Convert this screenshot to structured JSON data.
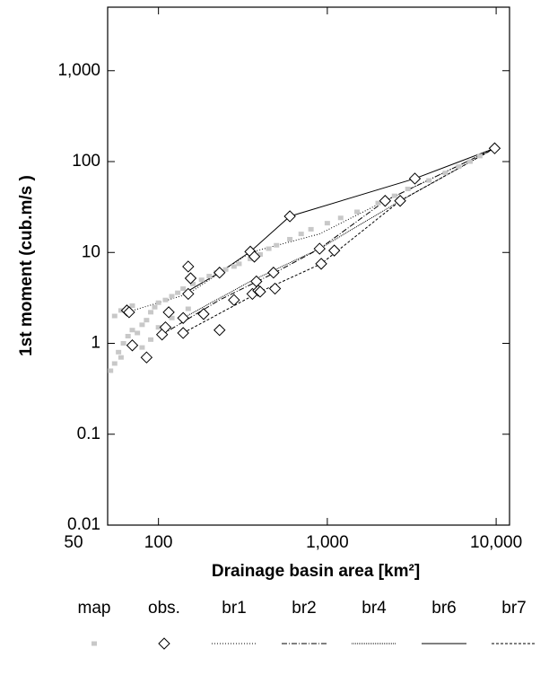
{
  "chart_data": {
    "type": "scatter",
    "x_label": "Drainage basin area [km²]",
    "y_label": "1st moment (cub.m/s )",
    "xscale": "log",
    "yscale": "log",
    "xlim": [
      50,
      12000
    ],
    "ylim": [
      0.01,
      5000
    ],
    "xticks": [
      50,
      100,
      {
        "value": 1000,
        "label": "1,000"
      },
      {
        "value": 10000,
        "label": "10,000"
      }
    ],
    "yticks": [
      0.01,
      0.1,
      1,
      10,
      100,
      {
        "value": 1000,
        "label": "1,000"
      }
    ],
    "series": [
      {
        "name": "map",
        "color": "#c8c8c8",
        "marker": "square",
        "dash": null,
        "x": [
          52,
          55,
          58,
          60,
          62,
          66,
          70,
          75,
          80,
          85,
          90,
          95,
          100,
          110,
          120,
          130,
          140,
          160,
          180,
          200,
          220,
          250,
          280,
          300,
          350,
          400,
          450,
          500,
          600,
          700,
          800,
          1000,
          1200,
          1500,
          2000,
          2500,
          3000,
          4000,
          5000,
          6000,
          7000,
          8000,
          55,
          60,
          70,
          80,
          90,
          100,
          120,
          150
        ],
        "y": [
          0.5,
          0.6,
          0.8,
          0.7,
          1.0,
          1.2,
          1.4,
          1.3,
          1.6,
          1.8,
          2.2,
          2.5,
          2.8,
          3.0,
          3.3,
          3.6,
          4.0,
          4.5,
          5.0,
          5.5,
          6.0,
          6.5,
          7.0,
          7.5,
          8.5,
          9.5,
          11,
          12,
          14,
          16,
          18,
          21,
          24,
          28,
          35,
          42,
          50,
          62,
          75,
          88,
          100,
          115,
          2.0,
          2.3,
          2.6,
          0.9,
          1.1,
          1.5,
          1.9,
          2.4
        ]
      },
      {
        "name": "obs.",
        "color": "#000000",
        "marker": "diamond",
        "dash": null,
        "x": [
          65,
          67,
          70,
          85,
          105,
          110,
          115,
          140,
          140,
          150,
          150,
          155,
          185,
          230,
          230,
          280,
          350,
          360,
          370,
          380,
          390,
          400,
          480,
          490,
          600,
          900,
          920,
          1100,
          2200,
          2700,
          3300,
          9800
        ],
        "y": [
          2.3,
          2.2,
          0.95,
          0.7,
          1.25,
          1.5,
          2.2,
          1.9,
          1.3,
          7,
          3.5,
          5.2,
          2.1,
          6,
          1.4,
          3,
          10.2,
          3.5,
          9,
          4.8,
          3.8,
          3.7,
          6,
          4,
          25,
          11,
          7.5,
          10.5,
          37,
          37,
          65,
          140
        ]
      },
      {
        "name": "br1",
        "color": "#000000",
        "marker": null,
        "dash": "1,2",
        "x": [
          65,
          150,
          350,
          900,
          2200,
          9800
        ],
        "y": [
          2.2,
          3.5,
          10,
          16,
          37,
          140
        ]
      },
      {
        "name": "br2",
        "color": "#000000",
        "marker": null,
        "dash": "6,2,1,2",
        "x": [
          105,
          230,
          490,
          900,
          2200,
          9800
        ],
        "y": [
          1.25,
          3,
          6,
          11,
          37,
          140
        ]
      },
      {
        "name": "br4",
        "color": "#000000",
        "marker": null,
        "dash": "1,1",
        "x": [
          140,
          350,
          900,
          2700,
          9800
        ],
        "y": [
          1.9,
          4.8,
          11,
          37,
          140
        ]
      },
      {
        "name": "br6",
        "color": "#000000",
        "marker": null,
        "dash": "none",
        "x": [
          140,
          230,
          350,
          600,
          3300,
          9800
        ],
        "y": [
          3.5,
          6,
          10.2,
          25,
          65,
          140
        ]
      },
      {
        "name": "br7",
        "color": "#000000",
        "marker": null,
        "dash": "3,2",
        "x": [
          140,
          400,
          920,
          2700,
          9800
        ],
        "y": [
          1.3,
          3.7,
          7.5,
          37,
          140
        ]
      }
    ]
  }
}
